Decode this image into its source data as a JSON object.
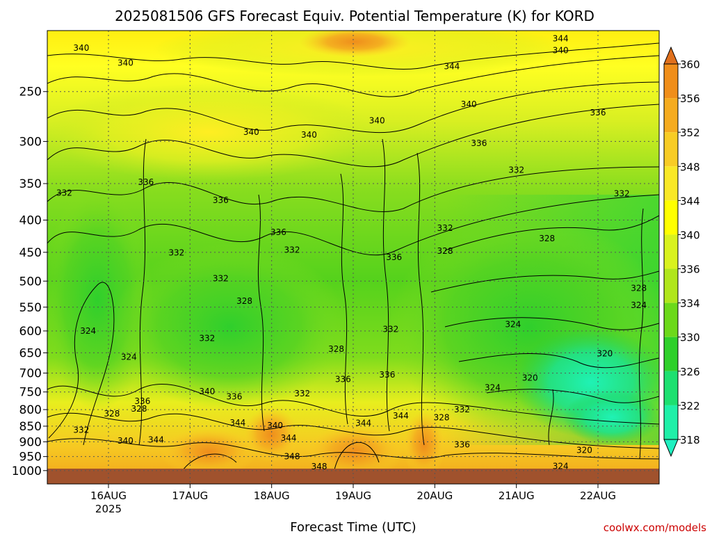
{
  "chart_data": {
    "type": "heatmap",
    "title": "2025081506 GFS Forecast Equiv. Potential Temperature (K) for KORD",
    "xlabel": "Forecast Time (UTC)",
    "ylabel": "",
    "credit": "coolwx.com/models",
    "x_range": [
      "2025-08-15 06Z",
      "2025-08-22 18Z"
    ],
    "x_ticks": [
      {
        "label": "16AUG",
        "sub": "2025",
        "hours": 18
      },
      {
        "label": "17AUG",
        "sub": "",
        "hours": 42
      },
      {
        "label": "18AUG",
        "sub": "",
        "hours": 66
      },
      {
        "label": "19AUG",
        "sub": "",
        "hours": 90
      },
      {
        "label": "20AUG",
        "sub": "",
        "hours": 114
      },
      {
        "label": "21AUG",
        "sub": "",
        "hours": 138
      },
      {
        "label": "22AUG",
        "sub": "",
        "hours": 162
      }
    ],
    "x_hours_range": [
      0,
      180
    ],
    "y_levels_hPa": [
      250,
      300,
      350,
      400,
      450,
      500,
      550,
      600,
      650,
      700,
      750,
      800,
      850,
      900,
      950,
      1000
    ],
    "y_top_hPa": 200,
    "y_bottom_hPa": 1050,
    "y_scale": "log-pressure",
    "grid": true,
    "colorbar": {
      "labels": [
        360,
        356,
        352,
        348,
        344,
        340,
        336,
        334,
        330,
        326,
        322,
        318
      ],
      "colors": [
        "#e0701c",
        "#f08e1a",
        "#f5ab1f",
        "#f8cc25",
        "#f9e826",
        "#ffff00",
        "#d9f21e",
        "#b0e61c",
        "#6cd91a",
        "#2ed02a",
        "#1de070",
        "#1ff0a8",
        "#20f0c0"
      ]
    },
    "contour_labels": [
      {
        "text": "340",
        "hours": 10,
        "hPa": 213
      },
      {
        "text": "340",
        "hours": 23,
        "hPa": 225
      },
      {
        "text": "344",
        "hours": 151,
        "hPa": 206
      },
      {
        "text": "340",
        "hours": 151,
        "hPa": 215
      },
      {
        "text": "344",
        "hours": 119,
        "hPa": 228
      },
      {
        "text": "340",
        "hours": 124,
        "hPa": 262
      },
      {
        "text": "336",
        "hours": 162,
        "hPa": 270
      },
      {
        "text": "340",
        "hours": 60,
        "hPa": 290
      },
      {
        "text": "340",
        "hours": 77,
        "hPa": 293
      },
      {
        "text": "340",
        "hours": 97,
        "hPa": 278
      },
      {
        "text": "336",
        "hours": 127,
        "hPa": 302
      },
      {
        "text": "332",
        "hours": 138,
        "hPa": 333
      },
      {
        "text": "332",
        "hours": 5,
        "hPa": 362
      },
      {
        "text": "336",
        "hours": 29,
        "hPa": 348
      },
      {
        "text": "336",
        "hours": 51,
        "hPa": 372
      },
      {
        "text": "332",
        "hours": 169,
        "hPa": 363
      },
      {
        "text": "336",
        "hours": 68,
        "hPa": 418
      },
      {
        "text": "332",
        "hours": 117,
        "hPa": 412
      },
      {
        "text": "332",
        "hours": 72,
        "hPa": 446
      },
      {
        "text": "332",
        "hours": 38,
        "hPa": 451
      },
      {
        "text": "328",
        "hours": 117,
        "hPa": 448
      },
      {
        "text": "328",
        "hours": 147,
        "hPa": 428
      },
      {
        "text": "336",
        "hours": 102,
        "hPa": 458
      },
      {
        "text": "332",
        "hours": 51,
        "hPa": 495
      },
      {
        "text": "328",
        "hours": 174,
        "hPa": 513
      },
      {
        "text": "328",
        "hours": 58,
        "hPa": 538
      },
      {
        "text": "324",
        "hours": 174,
        "hPa": 546
      },
      {
        "text": "324",
        "hours": 12,
        "hPa": 600
      },
      {
        "text": "324",
        "hours": 137,
        "hPa": 586
      },
      {
        "text": "332",
        "hours": 101,
        "hPa": 596
      },
      {
        "text": "332",
        "hours": 47,
        "hPa": 616
      },
      {
        "text": "324",
        "hours": 24,
        "hPa": 660
      },
      {
        "text": "328",
        "hours": 85,
        "hPa": 641
      },
      {
        "text": "320",
        "hours": 164,
        "hPa": 652
      },
      {
        "text": "336",
        "hours": 100,
        "hPa": 704
      },
      {
        "text": "336",
        "hours": 87,
        "hPa": 716
      },
      {
        "text": "320",
        "hours": 142,
        "hPa": 712
      },
      {
        "text": "324",
        "hours": 131,
        "hPa": 738
      },
      {
        "text": "340",
        "hours": 47,
        "hPa": 749
      },
      {
        "text": "336",
        "hours": 55,
        "hPa": 763
      },
      {
        "text": "332",
        "hours": 75,
        "hPa": 754
      },
      {
        "text": "336",
        "hours": 28,
        "hPa": 776
      },
      {
        "text": "328",
        "hours": 19,
        "hPa": 812
      },
      {
        "text": "328",
        "hours": 27,
        "hPa": 798
      },
      {
        "text": "344",
        "hours": 104,
        "hPa": 818
      },
      {
        "text": "332",
        "hours": 122,
        "hPa": 800
      },
      {
        "text": "328",
        "hours": 116,
        "hPa": 824
      },
      {
        "text": "344",
        "hours": 56,
        "hPa": 839
      },
      {
        "text": "340",
        "hours": 67,
        "hPa": 848
      },
      {
        "text": "344",
        "hours": 93,
        "hPa": 840
      },
      {
        "text": "332",
        "hours": 10,
        "hPa": 862
      },
      {
        "text": "340",
        "hours": 23,
        "hPa": 897
      },
      {
        "text": "344",
        "hours": 32,
        "hPa": 893
      },
      {
        "text": "344",
        "hours": 71,
        "hPa": 888
      },
      {
        "text": "336",
        "hours": 122,
        "hPa": 910
      },
      {
        "text": "320",
        "hours": 158,
        "hPa": 928
      },
      {
        "text": "348",
        "hours": 72,
        "hPa": 950
      },
      {
        "text": "348",
        "hours": 80,
        "hPa": 985
      },
      {
        "text": "324",
        "hours": 151,
        "hPa": 984
      }
    ]
  }
}
